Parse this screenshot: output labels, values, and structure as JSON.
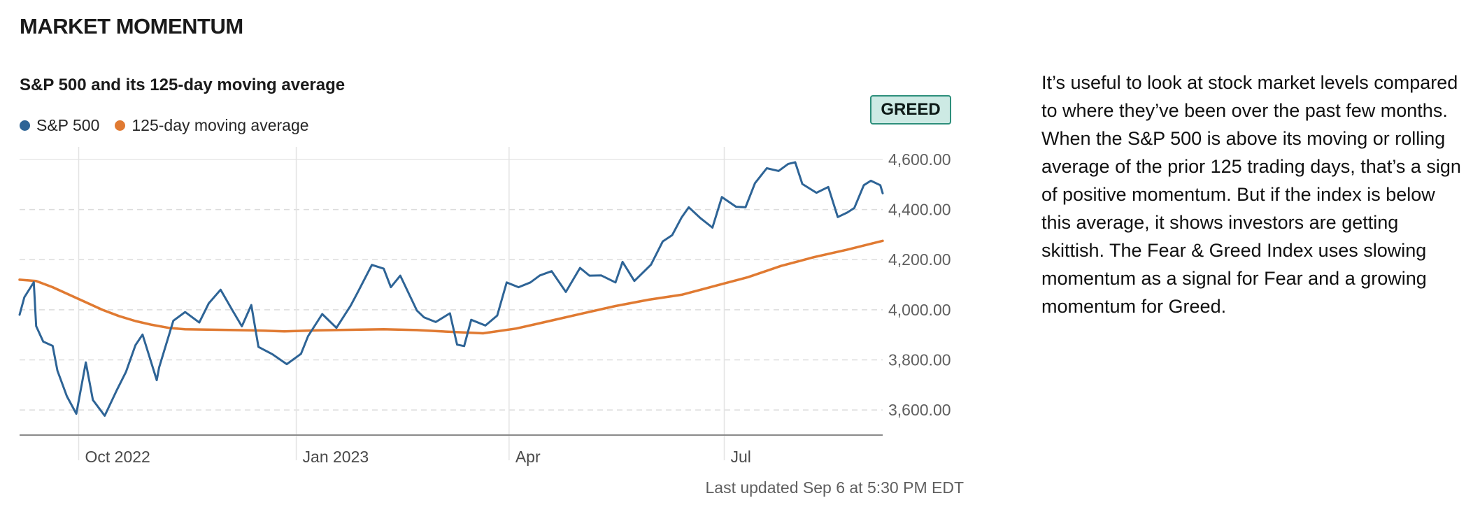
{
  "header": {
    "title": "MARKET MOMENTUM"
  },
  "chart_panel": {
    "badge": "GREED",
    "badge_color": "#cdeae4",
    "badge_border_color": "#2d8f7b",
    "last_updated": "Last updated Sep 6 at 5:30 PM EDT"
  },
  "description": "It’s useful to look at stock market levels compared to where they’ve been over the past few months. When the S&P 500 is above its moving or rolling average of the prior 125 trading days, that’s a sign of positive momentum. But if the index is below this average, it shows investors are getting skittish. The Fear & Greed Index uses slowing momentum as a signal for Fear and a growing momentum for Greed.",
  "chart_data": {
    "type": "line",
    "title": "S&P 500 and its 125-day moving average",
    "x_range": [
      "2022-09-06",
      "2023-09-06"
    ],
    "ylim": [
      3500,
      4650
    ],
    "y_ticks": [
      3600,
      3800,
      4000,
      4200,
      4400,
      4600
    ],
    "y_tick_labels": [
      "3,600.00",
      "3,800.00",
      "4,000.00",
      "4,200.00",
      "4,400.00",
      "4,600.00"
    ],
    "x_ticks": [
      {
        "date": "2022-10-01",
        "label": "Oct 2022"
      },
      {
        "date": "2023-01-01",
        "label": "Jan 2023"
      },
      {
        "date": "2023-04-01",
        "label": "Apr"
      },
      {
        "date": "2023-07-01",
        "label": "Jul"
      }
    ],
    "grid": true,
    "legend_position": "top-left",
    "series": [
      {
        "name": "S&P 500",
        "color": "#2e6496",
        "points": [
          [
            "2022-09-06",
            3980
          ],
          [
            "2022-09-08",
            4050
          ],
          [
            "2022-09-12",
            4110
          ],
          [
            "2022-09-13",
            3935
          ],
          [
            "2022-09-16",
            3873
          ],
          [
            "2022-09-20",
            3856
          ],
          [
            "2022-09-22",
            3757
          ],
          [
            "2022-09-26",
            3655
          ],
          [
            "2022-09-30",
            3585
          ],
          [
            "2022-10-04",
            3790
          ],
          [
            "2022-10-07",
            3640
          ],
          [
            "2022-10-12",
            3577
          ],
          [
            "2022-10-17",
            3677
          ],
          [
            "2022-10-21",
            3752
          ],
          [
            "2022-10-25",
            3859
          ],
          [
            "2022-10-28",
            3901
          ],
          [
            "2022-11-03",
            3719
          ],
          [
            "2022-11-04",
            3770
          ],
          [
            "2022-11-10",
            3956
          ],
          [
            "2022-11-15",
            3991
          ],
          [
            "2022-11-21",
            3949
          ],
          [
            "2022-11-25",
            4026
          ],
          [
            "2022-11-30",
            4080
          ],
          [
            "2022-12-05",
            3998
          ],
          [
            "2022-12-09",
            3934
          ],
          [
            "2022-12-13",
            4019
          ],
          [
            "2022-12-16",
            3852
          ],
          [
            "2022-12-22",
            3822
          ],
          [
            "2022-12-28",
            3783
          ],
          [
            "2023-01-03",
            3824
          ],
          [
            "2023-01-06",
            3895
          ],
          [
            "2023-01-12",
            3983
          ],
          [
            "2023-01-18",
            3928
          ],
          [
            "2023-01-24",
            4016
          ],
          [
            "2023-01-27",
            4070
          ],
          [
            "2023-02-02",
            4179
          ],
          [
            "2023-02-07",
            4164
          ],
          [
            "2023-02-10",
            4090
          ],
          [
            "2023-02-14",
            4136
          ],
          [
            "2023-02-21",
            3997
          ],
          [
            "2023-02-24",
            3970
          ],
          [
            "2023-03-01",
            3951
          ],
          [
            "2023-03-07",
            3986
          ],
          [
            "2023-03-10",
            3861
          ],
          [
            "2023-03-13",
            3855
          ],
          [
            "2023-03-16",
            3960
          ],
          [
            "2023-03-22",
            3937
          ],
          [
            "2023-03-27",
            3977
          ],
          [
            "2023-03-31",
            4109
          ],
          [
            "2023-04-05",
            4090
          ],
          [
            "2023-04-10",
            4109
          ],
          [
            "2023-04-14",
            4137
          ],
          [
            "2023-04-19",
            4154
          ],
          [
            "2023-04-25",
            4071
          ],
          [
            "2023-05-01",
            4167
          ],
          [
            "2023-05-05",
            4136
          ],
          [
            "2023-05-10",
            4137
          ],
          [
            "2023-05-16",
            4109
          ],
          [
            "2023-05-19",
            4191
          ],
          [
            "2023-05-24",
            4115
          ],
          [
            "2023-05-31",
            4180
          ],
          [
            "2023-06-05",
            4273
          ],
          [
            "2023-06-09",
            4298
          ],
          [
            "2023-06-13",
            4369
          ],
          [
            "2023-06-16",
            4409
          ],
          [
            "2023-06-21",
            4365
          ],
          [
            "2023-06-26",
            4328
          ],
          [
            "2023-06-30",
            4450
          ],
          [
            "2023-07-06",
            4411
          ],
          [
            "2023-07-10",
            4409
          ],
          [
            "2023-07-14",
            4505
          ],
          [
            "2023-07-19",
            4565
          ],
          [
            "2023-07-24",
            4554
          ],
          [
            "2023-07-28",
            4582
          ],
          [
            "2023-07-31",
            4589
          ],
          [
            "2023-08-03",
            4502
          ],
          [
            "2023-08-09",
            4467
          ],
          [
            "2023-08-14",
            4490
          ],
          [
            "2023-08-18",
            4370
          ],
          [
            "2023-08-22",
            4388
          ],
          [
            "2023-08-25",
            4406
          ],
          [
            "2023-08-29",
            4497
          ],
          [
            "2023-09-01",
            4515
          ],
          [
            "2023-09-05",
            4497
          ],
          [
            "2023-09-06",
            4465
          ]
        ]
      },
      {
        "name": "125-day moving average",
        "color": "#e07a32",
        "points": [
          [
            "2022-09-06",
            4120
          ],
          [
            "2022-09-13",
            4115
          ],
          [
            "2022-09-20",
            4090
          ],
          [
            "2022-09-27",
            4060
          ],
          [
            "2022-10-04",
            4030
          ],
          [
            "2022-10-11",
            4000
          ],
          [
            "2022-10-18",
            3975
          ],
          [
            "2022-10-25",
            3955
          ],
          [
            "2022-11-01",
            3940
          ],
          [
            "2022-11-08",
            3928
          ],
          [
            "2022-11-15",
            3922
          ],
          [
            "2022-11-29",
            3920
          ],
          [
            "2022-12-13",
            3918
          ],
          [
            "2022-12-27",
            3914
          ],
          [
            "2023-01-10",
            3918
          ],
          [
            "2023-01-24",
            3920
          ],
          [
            "2023-02-07",
            3922
          ],
          [
            "2023-02-21",
            3919
          ],
          [
            "2023-03-07",
            3912
          ],
          [
            "2023-03-21",
            3906
          ],
          [
            "2023-04-04",
            3925
          ],
          [
            "2023-04-18",
            3955
          ],
          [
            "2023-05-02",
            3985
          ],
          [
            "2023-05-16",
            4015
          ],
          [
            "2023-05-30",
            4040
          ],
          [
            "2023-06-13",
            4060
          ],
          [
            "2023-06-27",
            4095
          ],
          [
            "2023-07-11",
            4130
          ],
          [
            "2023-07-25",
            4175
          ],
          [
            "2023-08-08",
            4210
          ],
          [
            "2023-08-22",
            4240
          ],
          [
            "2023-09-06",
            4275
          ]
        ]
      }
    ]
  }
}
